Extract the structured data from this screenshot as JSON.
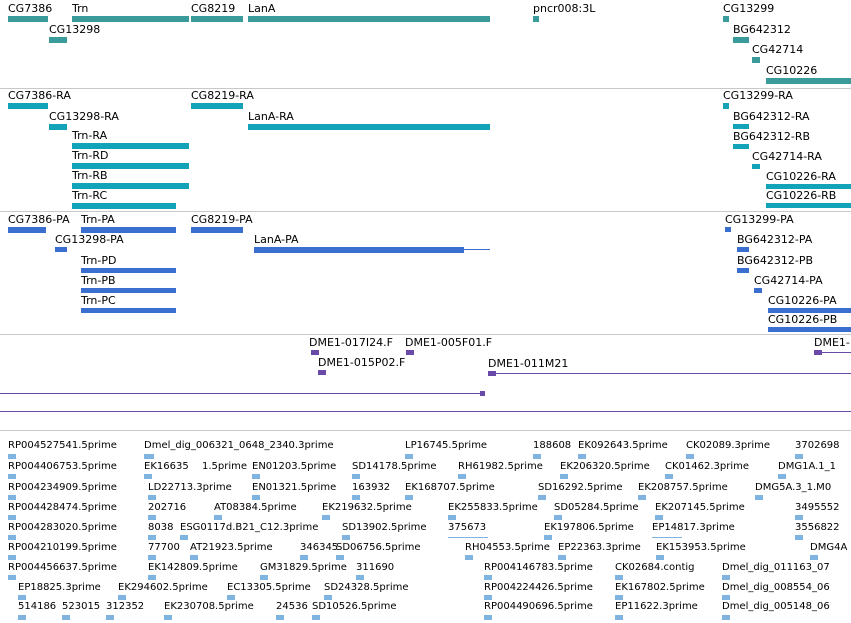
{
  "colors": {
    "gene": "#3b9a9a",
    "transcript": "#12a3b8",
    "protein": "#3a6fd0",
    "clone": "#6a4aa8",
    "est": "#7fb3e0"
  },
  "genes": [
    {
      "label": "CG7386"
    },
    {
      "label": "CG13298"
    },
    {
      "label": "Trn"
    },
    {
      "label": "CG8219"
    },
    {
      "label": "LanA"
    },
    {
      "label": "pncr008:3L"
    },
    {
      "label": "CG13299"
    },
    {
      "label": "BG642312"
    },
    {
      "label": "CG42714"
    },
    {
      "label": "CG10226"
    }
  ],
  "transcripts": [
    {
      "label": "CG7386-RA"
    },
    {
      "label": "CG13298-RA"
    },
    {
      "label": "Trn-RA"
    },
    {
      "label": "Trn-RD"
    },
    {
      "label": "Trn-RB"
    },
    {
      "label": "Trn-RC"
    },
    {
      "label": "CG8219-RA"
    },
    {
      "label": "LanA-RA"
    },
    {
      "label": "CG13299-RA"
    },
    {
      "label": "BG642312-RA"
    },
    {
      "label": "BG642312-RB"
    },
    {
      "label": "CG42714-RA"
    },
    {
      "label": "CG10226-RA"
    },
    {
      "label": "CG10226-RB"
    }
  ],
  "proteins": [
    {
      "label": "CG7386-PA"
    },
    {
      "label": "Trn-PA"
    },
    {
      "label": "CG13298-PA"
    },
    {
      "label": "Trn-PD"
    },
    {
      "label": "Trn-PB"
    },
    {
      "label": "Trn-PC"
    },
    {
      "label": "CG8219-PA"
    },
    {
      "label": "LanA-PA"
    },
    {
      "label": "CG13299-PA"
    },
    {
      "label": "BG642312-PA"
    },
    {
      "label": "BG642312-PB"
    },
    {
      "label": "CG42714-PA"
    },
    {
      "label": "CG10226-PA"
    },
    {
      "label": "CG10226-PB"
    }
  ],
  "clones": [
    {
      "label": "DME1-017I24.F"
    },
    {
      "label": "DME1-005F01.F"
    },
    {
      "label": "DME1-015P02.F"
    },
    {
      "label": "DME1-011M21"
    },
    {
      "label": "DME1-"
    }
  ],
  "ests": [
    {
      "label": "RP004527541.5prime"
    },
    {
      "label": "Dmel_dig_006321_0648_2340.3prime"
    },
    {
      "label": "LP16745.5prime"
    },
    {
      "label": "188608"
    },
    {
      "label": "EK092643.5prime"
    },
    {
      "label": "CK02089.3prime"
    },
    {
      "label": "3702698"
    },
    {
      "label": "RP004406753.5prime"
    },
    {
      "label": "EK16635"
    },
    {
      "label": "1.5prime"
    },
    {
      "label": "EN01203.5prime"
    },
    {
      "label": "SD14178.5prime"
    },
    {
      "label": "RH61982.5prime"
    },
    {
      "label": "EK206320.5prime"
    },
    {
      "label": "CK01462.3prime"
    },
    {
      "label": "DMG1A.1_1"
    },
    {
      "label": "RP004234909.5prime"
    },
    {
      "label": "LD22713.3prime"
    },
    {
      "label": "EN01321.5prime"
    },
    {
      "label": "163932"
    },
    {
      "label": "EK168707.5prime"
    },
    {
      "label": "SD16292.5prime"
    },
    {
      "label": "EK208757.5prime"
    },
    {
      "label": "DMG5A.3_1.M0"
    },
    {
      "label": "RP004428474.5prime"
    },
    {
      "label": "202716"
    },
    {
      "label": "AT08384.5prime"
    },
    {
      "label": "EK219632.5prime"
    },
    {
      "label": "EK255833.5prime"
    },
    {
      "label": "SD05284.5prime"
    },
    {
      "label": "EK207145.5prime"
    },
    {
      "label": "3495552"
    },
    {
      "label": "RP004283020.5prime"
    },
    {
      "label": "8038"
    },
    {
      "label": "ESG0117d.B21_C12.3prime"
    },
    {
      "label": "SD13902.5prime"
    },
    {
      "label": "375673"
    },
    {
      "label": "EK197806.5prime"
    },
    {
      "label": "EP14817.3prime"
    },
    {
      "label": "3556822"
    },
    {
      "label": "RP004210199.5prime"
    },
    {
      "label": "77700"
    },
    {
      "label": "AT21923.5prime"
    },
    {
      "label": "346345"
    },
    {
      "label": "SD06756.5prime"
    },
    {
      "label": "RH04553.5prime"
    },
    {
      "label": "EP22363.3prime"
    },
    {
      "label": "EK153953.5prime"
    },
    {
      "label": "DMG4A"
    },
    {
      "label": "RP004456637.5prime"
    },
    {
      "label": "EK142809.5prime"
    },
    {
      "label": "GM31829.5prime"
    },
    {
      "label": "311690"
    },
    {
      "label": "RP004146783.5prime"
    },
    {
      "label": "CK02684.contig"
    },
    {
      "label": "Dmel_dig_011163_07"
    },
    {
      "label": "EP18825.3prime"
    },
    {
      "label": "EK294602.5prime"
    },
    {
      "label": "EC13305.5prime"
    },
    {
      "label": "SD24328.5prime"
    },
    {
      "label": "RP004224426.5prime"
    },
    {
      "label": "EK167802.5prime"
    },
    {
      "label": "Dmel_dig_008554_06"
    },
    {
      "label": "514186"
    },
    {
      "label": "523015"
    },
    {
      "label": "312352"
    },
    {
      "label": "EK230708.5prime"
    },
    {
      "label": "24536"
    },
    {
      "label": "SD10526.5prime"
    },
    {
      "label": "RP004490696.5prime"
    },
    {
      "label": "EP11622.3prime"
    },
    {
      "label": "Dmel_dig_005148_06"
    }
  ]
}
